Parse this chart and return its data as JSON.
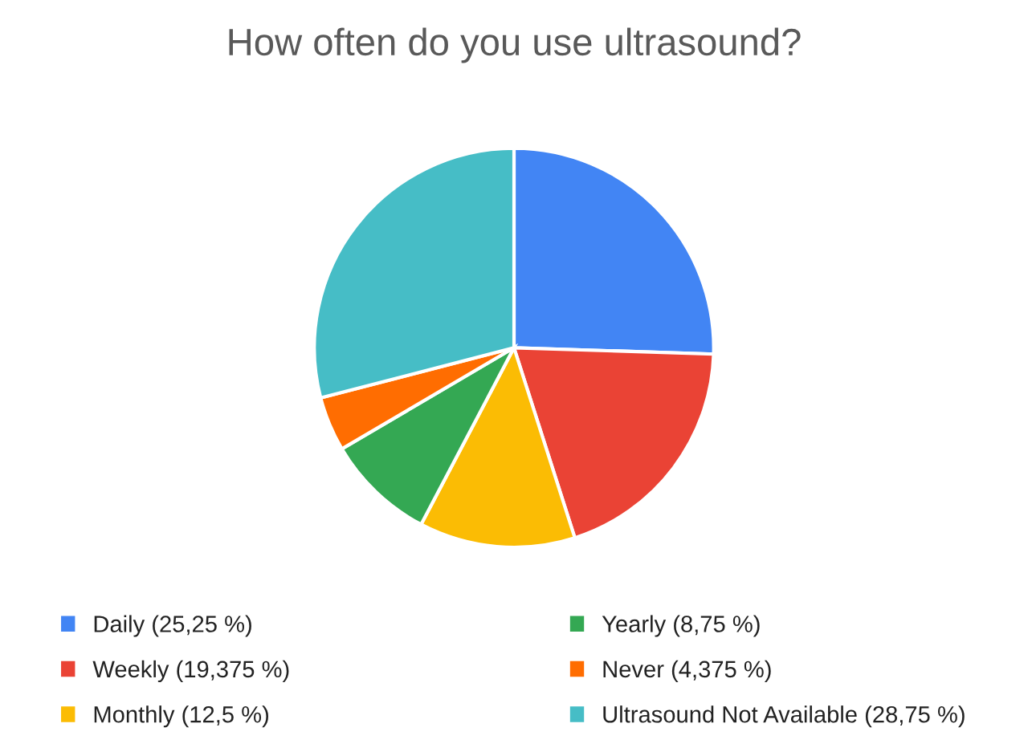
{
  "chart_data": {
    "type": "pie",
    "title": "How often do you use ultrasound?",
    "categories": [
      "Daily (25,25 %)",
      "Weekly (19,375 %)",
      "Monthly (12,5 %)",
      "Yearly (8,75 %)",
      "Never (4,375 %)",
      "Ultrasound Not Available (28,75 %)"
    ],
    "values": [
      25.25,
      19.375,
      12.5,
      8.75,
      4.375,
      28.75
    ],
    "colors": [
      "#4285f4",
      "#ea4335",
      "#fbbc04",
      "#34a853",
      "#ff6d01",
      "#46bdc6"
    ],
    "legend": "bottom"
  }
}
